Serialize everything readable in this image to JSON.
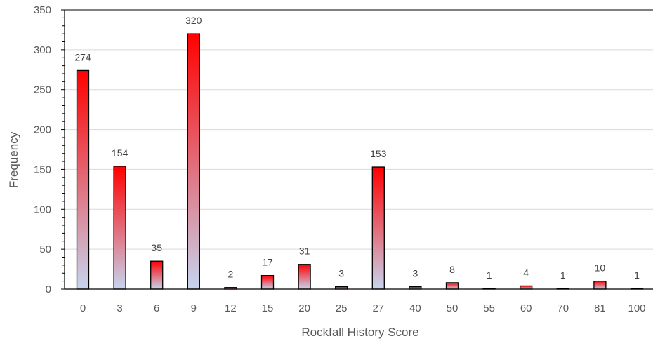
{
  "chart_data": {
    "type": "bar",
    "categories": [
      "0",
      "3",
      "6",
      "9",
      "12",
      "15",
      "20",
      "25",
      "27",
      "40",
      "50",
      "55",
      "60",
      "70",
      "81",
      "100"
    ],
    "values": [
      274,
      154,
      35,
      320,
      2,
      17,
      31,
      3,
      153,
      3,
      8,
      1,
      4,
      1,
      10,
      1
    ],
    "title": "",
    "xlabel": "Rockfall History Score",
    "ylabel": "Frequency",
    "ylim": [
      0,
      350
    ],
    "yticks": [
      0,
      50,
      100,
      150,
      200,
      250,
      300,
      350
    ],
    "grid": true,
    "legend": "none",
    "data_labels": true
  },
  "colors": {
    "bar_top": "#ff0000",
    "bar_bottom": "#c6d5ef",
    "bar_stroke": "#000000",
    "grid": "#d9d9d9",
    "axis": "#000000",
    "text": "#595959"
  }
}
